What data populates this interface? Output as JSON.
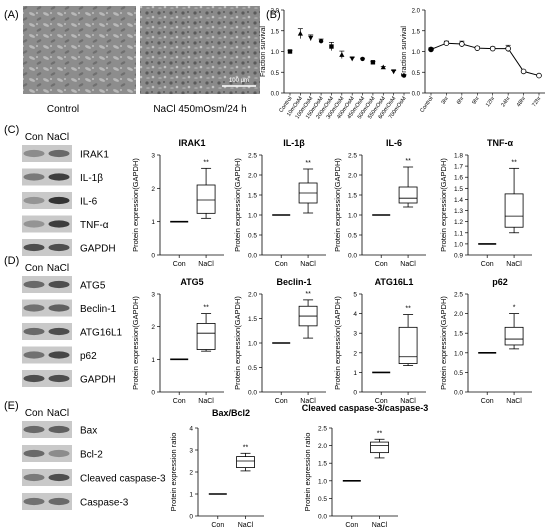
{
  "panel_letters": {
    "A": "(A)",
    "B": "(B)",
    "C": "(C)",
    "D": "(D)",
    "E": "(E)"
  },
  "micrographs": {
    "left_label": "Control",
    "right_label": "NaCl 450mOsm/24 h",
    "scale_bar": "100 μm"
  },
  "blots": {
    "C": {
      "lanes": [
        "Con",
        "NaCl"
      ],
      "bands": [
        "IRAK1",
        "IL-1β",
        "IL-6",
        "TNF-α",
        "GAPDH"
      ]
    },
    "D": {
      "lanes": [
        "Con",
        "NaCl"
      ],
      "bands": [
        "ATG5",
        "Beclin-1",
        "ATG16L1",
        "p62",
        "GAPDH"
      ]
    },
    "E": {
      "lanes": [
        "Con",
        "NaCl"
      ],
      "bands": [
        "Bax",
        "Bcl-2",
        "Cleaved caspase-3",
        "Caspase-3"
      ]
    }
  },
  "chart_data": [
    {
      "id": "B_dose",
      "type": "scatter",
      "title": "",
      "xlabel": "",
      "ylabel": "Fraction survival",
      "categories": [
        "Control",
        "10mOsM",
        "100mOsM",
        "150mOsM",
        "200mOsM",
        "300mOsM",
        "400mOsM",
        "450mOsM",
        "500mOsM",
        "550mOsM",
        "600mOsM",
        "700mOsM"
      ],
      "values": [
        1.0,
        1.43,
        1.33,
        1.25,
        1.12,
        0.92,
        0.83,
        0.82,
        0.74,
        0.62,
        0.52,
        0.42
      ],
      "errors": [
        0.03,
        0.12,
        0.07,
        0.05,
        0.1,
        0.09,
        0.03,
        0.02,
        0.02,
        0.02,
        0.02,
        0.02
      ],
      "ylim": [
        0,
        2
      ],
      "yticks": [
        "0.0",
        "0.5",
        "1.0",
        "1.5",
        "2.0"
      ]
    },
    {
      "id": "B_time",
      "type": "line",
      "title": "",
      "xlabel": "",
      "ylabel": "Fraction survival",
      "categories": [
        "Control",
        "3hr",
        "6hr",
        "9hr",
        "12hr",
        "24hr",
        "48hr",
        "72hr"
      ],
      "values": [
        1.05,
        1.2,
        1.18,
        1.08,
        1.07,
        1.07,
        0.52,
        0.42
      ],
      "errors": [
        0.04,
        0.05,
        0.07,
        0.04,
        0.04,
        0.08,
        0.03,
        0.02
      ],
      "ylim": [
        0,
        2
      ],
      "yticks": [
        "0.0",
        "0.5",
        "1.0",
        "1.5",
        "2.0"
      ]
    },
    {
      "id": "C_IRAK1",
      "type": "box",
      "title": "IRAK1",
      "ylabel": "Protein expression(GAPDH)",
      "categories": [
        "Con",
        "NaCl"
      ],
      "con": 1,
      "box": {
        "min": 1.1,
        "q1": 1.25,
        "median": 1.65,
        "q3": 2.1,
        "max": 2.6
      },
      "significance": "**",
      "ylim": [
        0,
        3
      ],
      "yticks": [
        "0",
        "1",
        "2",
        "3"
      ]
    },
    {
      "id": "C_IL1b",
      "type": "box",
      "title": "IL-1β",
      "ylabel": "Protein expression(GAPDH)",
      "categories": [
        "Con",
        "NaCl"
      ],
      "con": 1,
      "box": {
        "min": 1.05,
        "q1": 1.3,
        "median": 1.55,
        "q3": 1.8,
        "max": 2.15
      },
      "significance": "**",
      "ylim": [
        0,
        2.5
      ],
      "yticks": [
        "0.0",
        "0.5",
        "1.0",
        "1.5",
        "2.0",
        "2.5"
      ]
    },
    {
      "id": "C_IL6",
      "type": "box",
      "title": "IL-6",
      "ylabel": "Protein expression(GAPDH)",
      "categories": [
        "Con",
        "NaCl"
      ],
      "con": 1,
      "box": {
        "min": 1.2,
        "q1": 1.3,
        "median": 1.42,
        "q3": 1.7,
        "max": 2.2
      },
      "significance": "**",
      "ylim": [
        0,
        2.5
      ],
      "yticks": [
        "0.0",
        "0.5",
        "1.0",
        "1.5",
        "2.0",
        "2.5"
      ]
    },
    {
      "id": "C_TNFa",
      "type": "box",
      "title": "TNF-α",
      "ylabel": "Protein expression(GAPDH)",
      "categories": [
        "Con",
        "NaCl"
      ],
      "con": 1,
      "box": {
        "min": 1.1,
        "q1": 1.15,
        "median": 1.25,
        "q3": 1.45,
        "max": 1.68
      },
      "significance": "**",
      "ylim": [
        0.9,
        1.8
      ],
      "yticks": [
        "0.9",
        "1.0",
        "1.1",
        "1.2",
        "1.3",
        "1.4",
        "1.5",
        "1.6",
        "1.7",
        "1.8"
      ]
    },
    {
      "id": "D_ATG5",
      "type": "box",
      "title": "ATG5",
      "ylabel": "Protein expression(GAPDH)",
      "categories": [
        "Con",
        "NaCl"
      ],
      "con": 1,
      "box": {
        "min": 1.25,
        "q1": 1.3,
        "median": 1.8,
        "q3": 2.1,
        "max": 2.4
      },
      "significance": "**",
      "ylim": [
        0,
        3
      ],
      "yticks": [
        "0",
        "1",
        "2",
        "3"
      ]
    },
    {
      "id": "D_Beclin1",
      "type": "box",
      "title": "Beclin-1",
      "ylabel": "Protein expression(GAPDH)",
      "categories": [
        "Con",
        "NaCl"
      ],
      "con": 1,
      "box": {
        "min": 1.1,
        "q1": 1.35,
        "median": 1.55,
        "q3": 1.75,
        "max": 1.88
      },
      "significance": "**",
      "ylim": [
        0,
        2
      ],
      "yticks": [
        "0.0",
        "0.5",
        "1.0",
        "1.5",
        "2.0"
      ]
    },
    {
      "id": "D_ATG16L1",
      "type": "box",
      "title": "ATG16L1",
      "ylabel": "Protein expression(GAPDH)",
      "categories": [
        "Con",
        "NaCl"
      ],
      "con": 1,
      "box": {
        "min": 1.35,
        "q1": 1.45,
        "median": 1.8,
        "q3": 3.3,
        "max": 3.95
      },
      "significance": "**",
      "ylim": [
        0,
        5
      ],
      "yticks": [
        "0",
        "1",
        "2",
        "3",
        "4",
        "5"
      ]
    },
    {
      "id": "D_p62",
      "type": "box",
      "title": "p62",
      "ylabel": "Protein expression(GAPDH)",
      "categories": [
        "Con",
        "NaCl"
      ],
      "con": 1,
      "box": {
        "min": 1.1,
        "q1": 1.2,
        "median": 1.35,
        "q3": 1.65,
        "max": 2.0
      },
      "significance": "*",
      "ylim": [
        0,
        2.5
      ],
      "yticks": [
        "0.0",
        "0.5",
        "1.0",
        "1.5",
        "2.0",
        "2.5"
      ]
    },
    {
      "id": "E_BaxBcl2",
      "type": "box",
      "title": "Bax/Bcl2",
      "ylabel": "Protein expression ratio",
      "categories": [
        "Con",
        "NaCl"
      ],
      "con": 1,
      "box": {
        "min": 2.05,
        "q1": 2.2,
        "median": 2.5,
        "q3": 2.7,
        "max": 2.85
      },
      "significance": "**",
      "ylim": [
        0,
        4
      ],
      "yticks": [
        "0",
        "1",
        "2",
        "3",
        "4"
      ]
    },
    {
      "id": "E_Casp3",
      "type": "box",
      "title": "Cleaved caspase-3/caspase-3",
      "ylabel": "Protein expression ratio",
      "categories": [
        "Con",
        "NaCl"
      ],
      "con": 1,
      "box": {
        "min": 1.65,
        "q1": 1.8,
        "median": 2.0,
        "q3": 2.1,
        "max": 2.18
      },
      "significance": "**",
      "ylim": [
        0,
        2.5
      ],
      "yticks": [
        "0.0",
        "0.5",
        "1.0",
        "1.5",
        "2.0",
        "2.5"
      ]
    }
  ]
}
